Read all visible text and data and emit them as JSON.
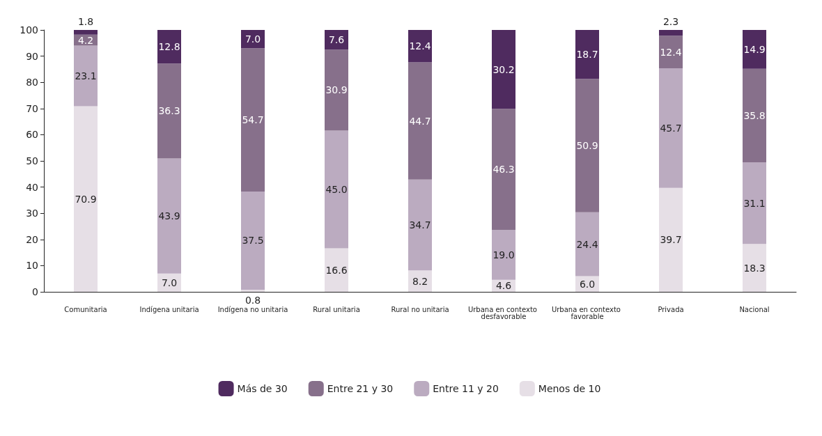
{
  "chart_data": {
    "type": "bar",
    "stacked": true,
    "categories": [
      "Comunitaria",
      "Indígena unitaria",
      "Indígena no unitaria",
      "Rural unitaria",
      "Rural no unitaria",
      "Urbana en contexto desfavorable",
      "Urbana en contexto favorable",
      "Privada",
      "Nacional"
    ],
    "series": [
      {
        "name": "Menos de 10",
        "color": "#e6dfe6",
        "values": [
          70.9,
          7.0,
          0.8,
          16.6,
          8.2,
          4.6,
          6.0,
          39.7,
          18.3
        ],
        "value_labels": [
          "70.9",
          "7.0",
          "0.8",
          "16.6",
          "8.2",
          "4.6",
          "6.0",
          "39.7",
          "18.3"
        ]
      },
      {
        "name": "Entre 11 y 20",
        "color": "#bbabc0",
        "values": [
          23.1,
          43.9,
          37.5,
          45.0,
          34.7,
          19.0,
          24.4,
          45.7,
          31.1
        ],
        "value_labels": [
          "23.1",
          "43.9",
          "37.5",
          "45.0",
          "34.7",
          "19.0",
          "24.4",
          "45.7",
          "31.1"
        ]
      },
      {
        "name": "Entre 21 y 30",
        "color": "#87708b",
        "values": [
          4.2,
          36.3,
          54.7,
          30.9,
          44.7,
          46.3,
          50.9,
          12.4,
          35.8
        ],
        "value_labels": [
          "4.2",
          "36.3",
          "54.7",
          "30.9",
          "44.7",
          "46.3",
          "50.9",
          "12.4",
          "35.8"
        ]
      },
      {
        "name": "Más de 30",
        "color": "#4f2b5f",
        "values": [
          1.8,
          12.8,
          7.0,
          7.6,
          12.4,
          30.2,
          18.7,
          2.3,
          14.9
        ],
        "value_labels": [
          "1.8",
          "12.8",
          "7.0",
          "7.6",
          "12.4",
          "30.2",
          "18.7",
          "2.3",
          "14.9"
        ]
      }
    ],
    "ylim": [
      0,
      100
    ],
    "yticks": [
      0,
      10,
      20,
      30,
      40,
      50,
      60,
      70,
      80,
      90,
      100
    ],
    "grid": false,
    "legend": "bottom"
  }
}
